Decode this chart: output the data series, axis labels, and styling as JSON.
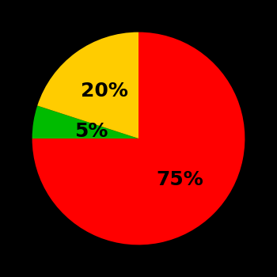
{
  "slices": [
    75,
    5,
    20
  ],
  "labels": [
    "75%",
    "5%",
    "20%"
  ],
  "colors": [
    "#ff0000",
    "#00bb00",
    "#ffcc00"
  ],
  "startangle": 90,
  "background_color": "#000000",
  "text_color": "#000000",
  "font_size": 18,
  "font_weight": "bold",
  "label_radii": [
    0.55,
    0.45,
    0.55
  ]
}
